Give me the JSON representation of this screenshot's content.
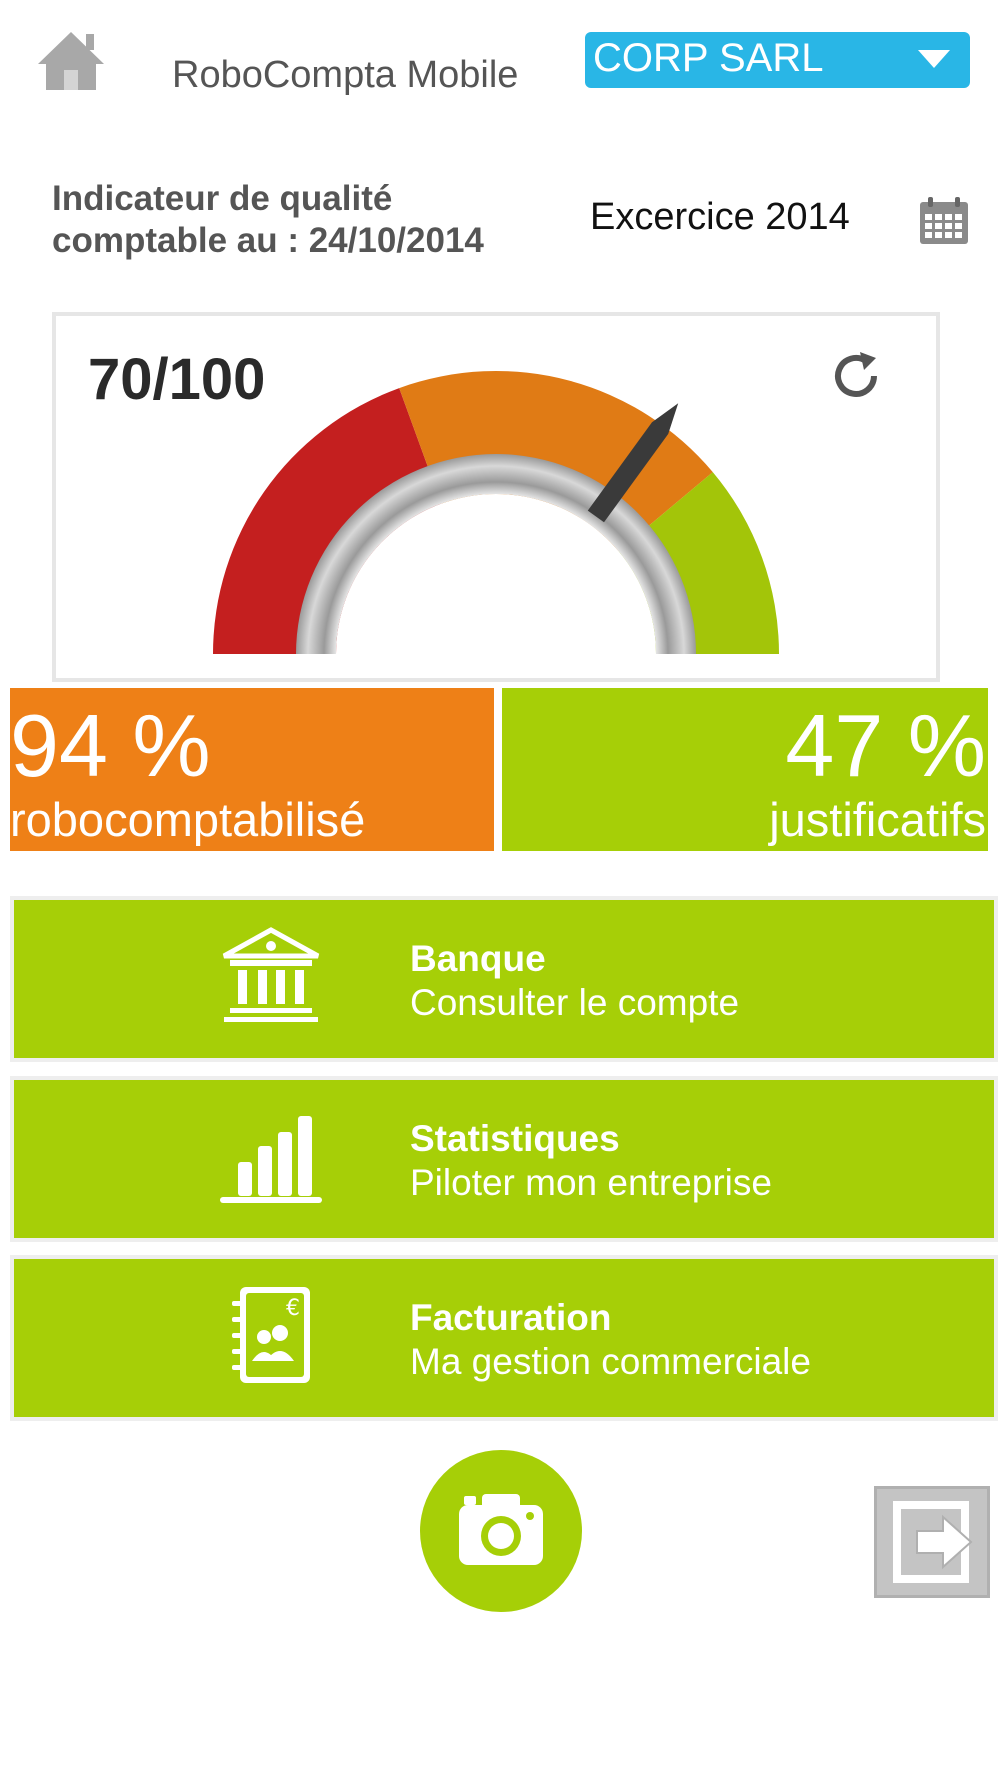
{
  "header": {
    "app_title": "RoboCompta Mobile",
    "company_selected": "CORP SARL",
    "home_icon": "home-icon",
    "dropdown_icon": "chevron-down-icon"
  },
  "quality": {
    "label_line1": "Indicateur de qualité",
    "label_line2": "comptable au : 24/10/2014",
    "exercise": "Excercice 2014",
    "calendar_icon": "calendar-icon"
  },
  "gauge": {
    "score_text": "70/100",
    "score": 70,
    "max": 100,
    "refresh_icon": "refresh-icon",
    "colors": {
      "red": "#c41f1f",
      "orange": "#e07b15",
      "green": "#a3c509",
      "needle": "#3a3a3a"
    }
  },
  "stats": {
    "robo_value": "94 %",
    "robo_label": "robocomptabilisé",
    "justif_value": "47 %",
    "justif_label": "justificatifs",
    "robo_color": "#ee8017",
    "justif_color": "#a6cf07"
  },
  "menu": [
    {
      "title": "Banque",
      "subtitle": "Consulter le compte",
      "icon": "bank-icon"
    },
    {
      "title": "Statistiques",
      "subtitle": "Piloter mon entreprise",
      "icon": "bar-chart-icon"
    },
    {
      "title": "Facturation",
      "subtitle": "Ma gestion commerciale",
      "icon": "invoice-book-icon"
    }
  ],
  "footer": {
    "camera_icon": "camera-icon",
    "logout_icon": "logout-icon"
  }
}
